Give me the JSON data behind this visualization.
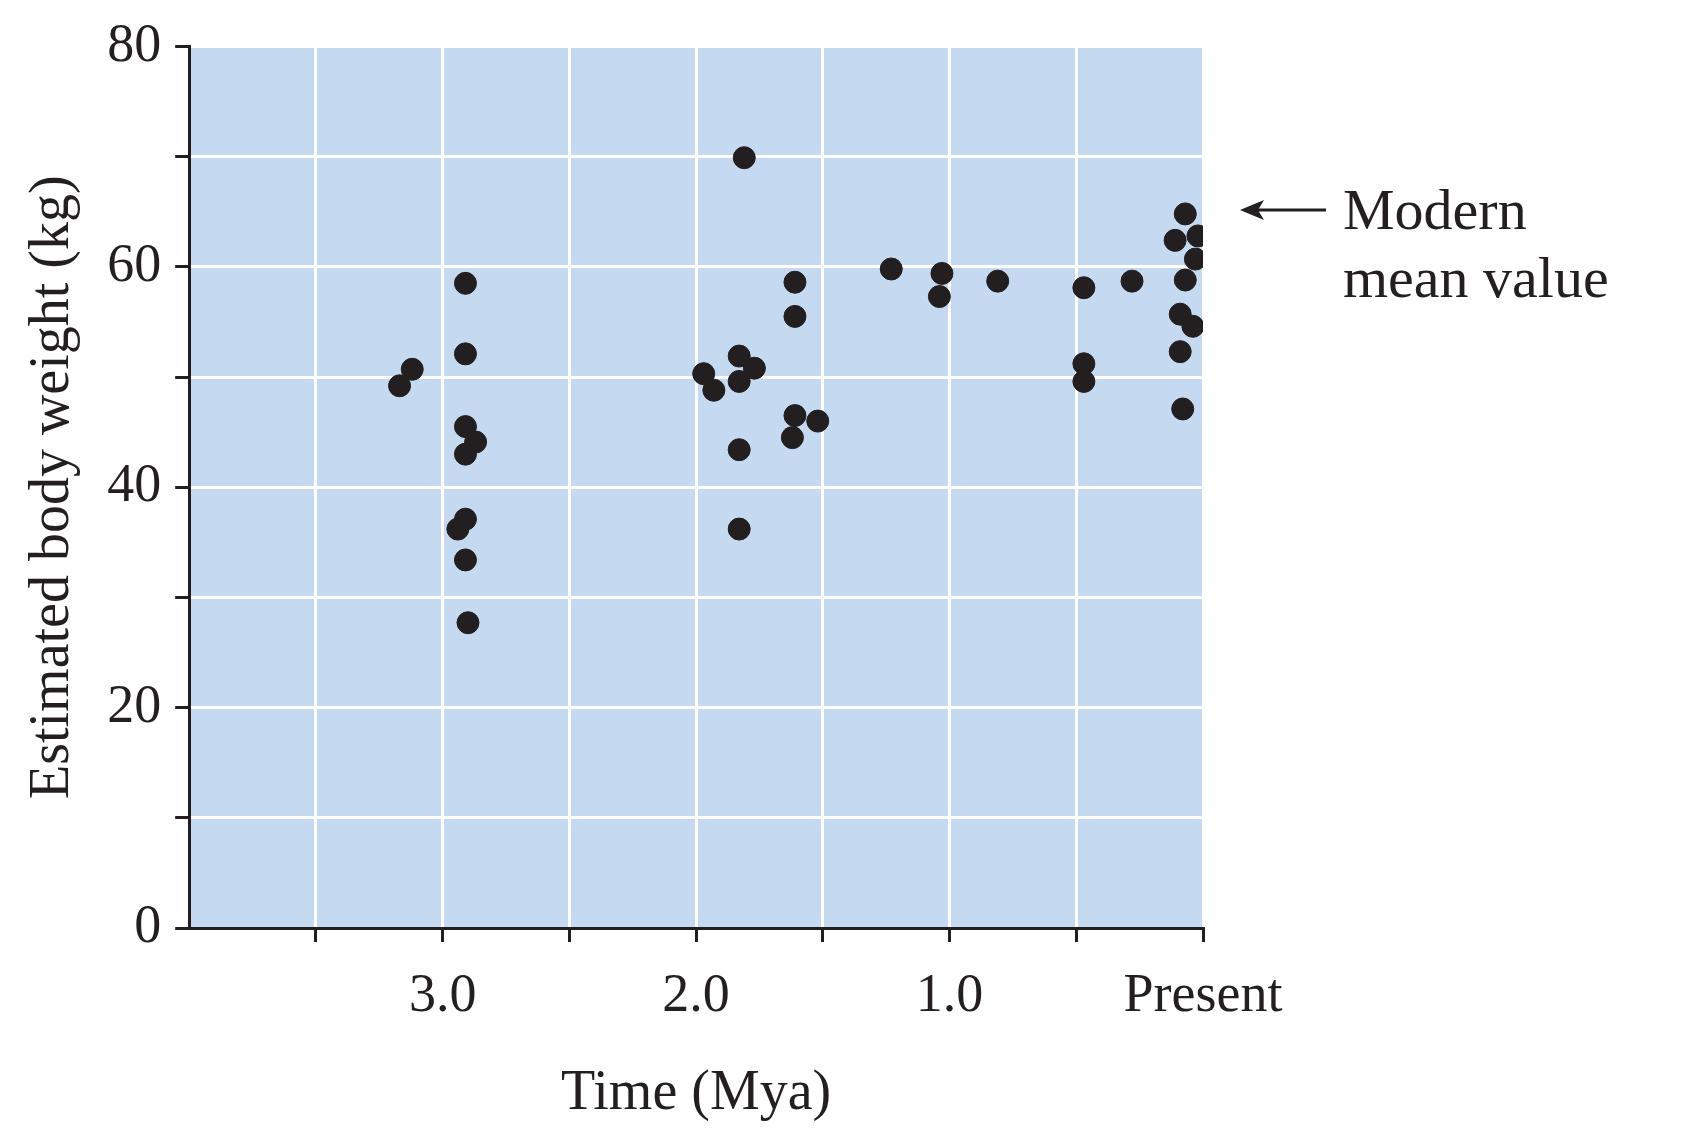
{
  "chart_data": {
    "type": "scatter",
    "xlabel": "Time (Mya)",
    "ylabel": "Estimated body weight (kg)",
    "xlim": [
      4,
      0
    ],
    "ylim": [
      0,
      80
    ],
    "xticks": [
      {
        "value": 3.5,
        "label": null
      },
      {
        "value": 3,
        "label": "3.0"
      },
      {
        "value": 2.5,
        "label": null
      },
      {
        "value": 2,
        "label": "2.0"
      },
      {
        "value": 1.5,
        "label": null
      },
      {
        "value": 1,
        "label": "1.0"
      },
      {
        "value": 0.5,
        "label": null
      },
      {
        "value": 0,
        "label": "Present"
      }
    ],
    "yticks": [
      0,
      {
        "value": 10,
        "label": null
      },
      20,
      {
        "value": 30,
        "label": null
      },
      40,
      {
        "value": 50,
        "label": null
      },
      60,
      {
        "value": 70,
        "label": null
      },
      80
    ],
    "grid": true,
    "marker": "circle",
    "legend": false,
    "annotations": [
      "Modern\nmean value"
    ],
    "series": [
      {
        "color": "#231f20",
        "x": [
          3.17,
          3.12,
          2.91,
          2.91,
          2.91,
          2.87,
          2.91,
          2.94,
          2.91,
          2.91,
          2.9,
          1.97,
          1.93,
          1.81,
          1.83,
          1.77,
          1.83,
          1.83,
          1.83,
          1.61,
          1.61,
          1.61,
          1.52,
          1.62,
          1.23,
          1.03,
          1.04,
          0.81,
          0.47,
          0.47,
          0.47,
          0.28,
          0.07,
          0.11,
          0.02,
          0.03,
          0.07,
          0.09,
          0.04,
          0.09,
          0.08
        ],
        "values": [
          49.2,
          50.7,
          58.5,
          52.1,
          45.5,
          44.1,
          43.0,
          36.2,
          37.1,
          33.4,
          27.7,
          50.3,
          48.8,
          69.9,
          51.9,
          50.8,
          49.6,
          43.4,
          36.2,
          58.6,
          55.5,
          46.5,
          46.0,
          44.5,
          59.8,
          59.4,
          57.3,
          58.7,
          58.1,
          51.2,
          49.6,
          58.7,
          64.8,
          62.4,
          62.8,
          60.7,
          58.8,
          55.7,
          54.6,
          52.3,
          47.1
        ]
      }
    ]
  }
}
